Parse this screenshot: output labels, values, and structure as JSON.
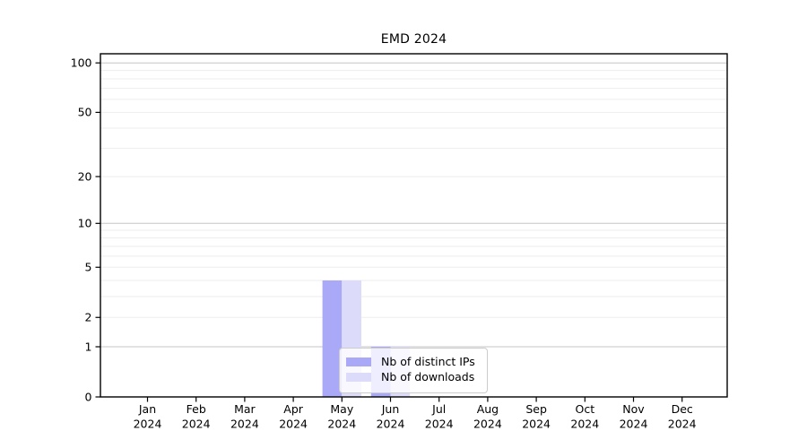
{
  "title": "EMD 2024",
  "colors": {
    "distinct_ips": "#a9a9f7",
    "downloads": "#dcdcfa",
    "grid_major": "#c6c6c6",
    "grid_minor": "#ededed",
    "axis": "#000000",
    "legend_border": "#cccccc",
    "text": "#000000"
  },
  "legend": {
    "items": [
      {
        "label": "Nb of distinct IPs",
        "color_key": "distinct_ips"
      },
      {
        "label": "Nb of downloads",
        "color_key": "downloads"
      }
    ]
  },
  "chart_data": {
    "type": "bar",
    "title": "EMD 2024",
    "categories": [
      "Jan 2024",
      "Feb 2024",
      "Mar 2024",
      "Apr 2024",
      "May 2024",
      "Jun 2024",
      "Jul 2024",
      "Aug 2024",
      "Sep 2024",
      "Oct 2024",
      "Nov 2024",
      "Dec 2024"
    ],
    "series": [
      {
        "name": "Nb of distinct IPs",
        "color_key": "distinct_ips",
        "values": [
          0,
          0,
          0,
          0,
          4,
          1,
          0,
          0,
          0,
          0,
          0,
          0
        ]
      },
      {
        "name": "Nb of downloads",
        "color_key": "downloads",
        "values": [
          0,
          0,
          0,
          0,
          4,
          1,
          0,
          0,
          0,
          0,
          0,
          0
        ]
      }
    ],
    "xlabel": "",
    "ylabel": "",
    "yscale": "log1p",
    "ylim": [
      0,
      113.6
    ],
    "y_major_ticks": [
      0,
      1,
      2,
      5,
      10,
      20,
      50,
      100
    ],
    "y_minor_ticks": [
      3,
      4,
      6,
      7,
      8,
      9,
      30,
      40,
      60,
      70,
      80,
      90
    ],
    "y_emphasized_gridlines": [
      1,
      10,
      100
    ],
    "grid": "horizontal",
    "legend_position": "lower-center"
  }
}
